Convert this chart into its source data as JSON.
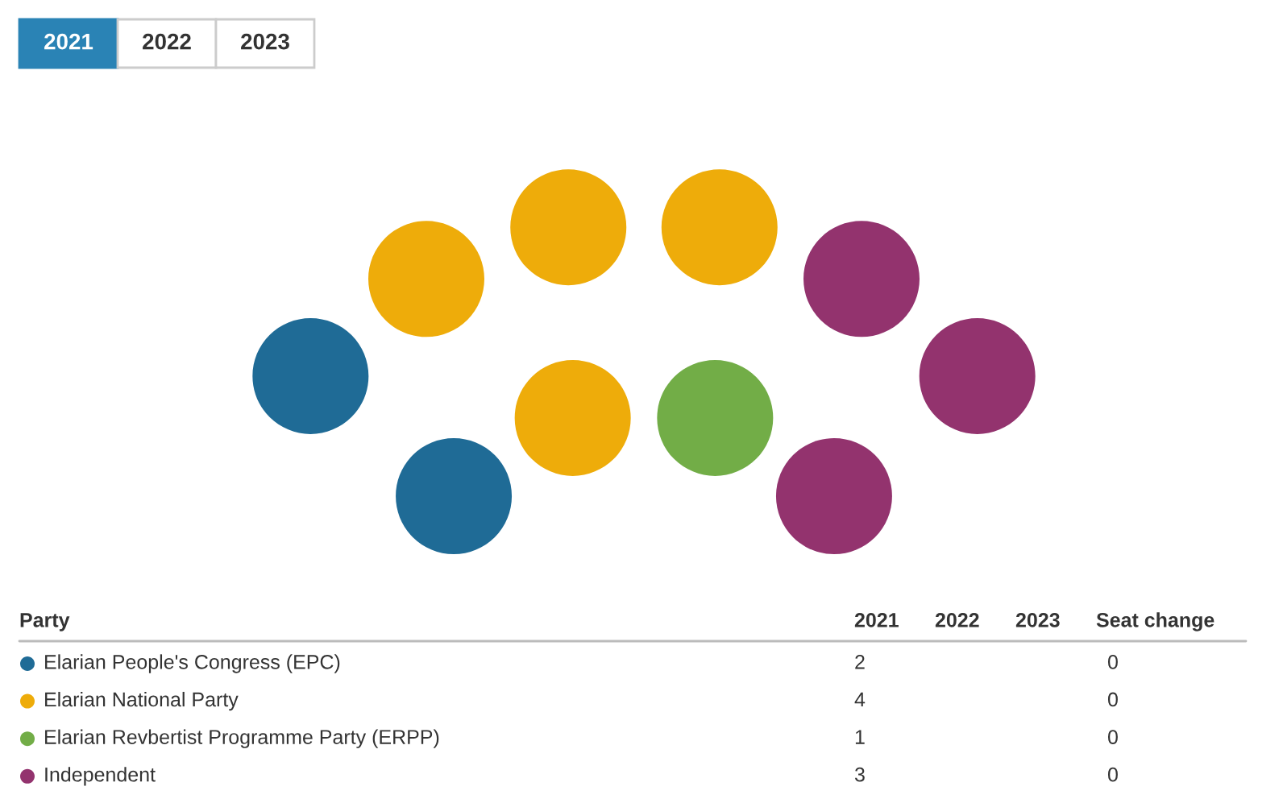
{
  "chart_data": {
    "type": "other",
    "legend_title": "Party",
    "categories": [
      "Elarian People's Congress (EPC)",
      "Elarian National Party",
      "Elarian Revbertist Programme Party (ERPP)",
      "Independent"
    ],
    "colors": [
      "#1f6b96",
      "#eeac0a",
      "#72ad47",
      "#93336e"
    ],
    "series": [
      {
        "name": "2021",
        "values": [
          2,
          4,
          1,
          3
        ]
      },
      {
        "name": "2022",
        "values": [
          null,
          null,
          null,
          null
        ]
      },
      {
        "name": "2023",
        "values": [
          null,
          null,
          null,
          null
        ]
      },
      {
        "name": "Seat change",
        "values": [
          0,
          0,
          0,
          0
        ]
      }
    ],
    "data_labels": true
  }
}
